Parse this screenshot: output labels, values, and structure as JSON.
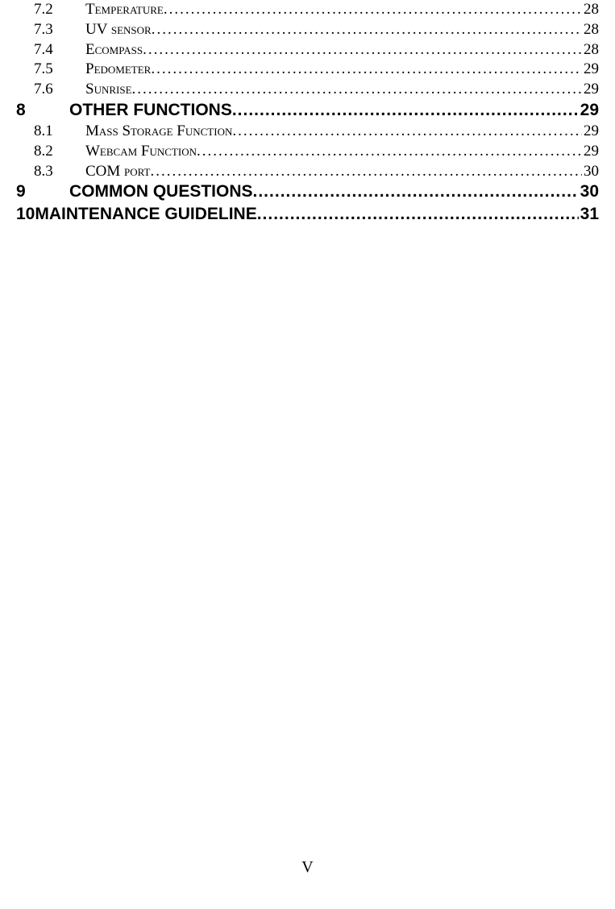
{
  "toc": {
    "entries": [
      {
        "level": "2",
        "num": "7.2",
        "title": "Temperature",
        "page": "28",
        "smallcaps": true
      },
      {
        "level": "2",
        "num": "7.3",
        "title": "UV sensor",
        "page": "28",
        "smallcaps": true
      },
      {
        "level": "2",
        "num": "7.4",
        "title": "Ecompass",
        "page": "28",
        "smallcaps": true
      },
      {
        "level": "2",
        "num": "7.5",
        "title": "Pedometer",
        "page": "29",
        "smallcaps": true
      },
      {
        "level": "2",
        "num": "7.6",
        "title": "Sunrise",
        "page": "29",
        "smallcaps": true
      },
      {
        "level": "1",
        "num": "8",
        "title": "OTHER FUNCTIONS",
        "page": "29",
        "smallcaps": false
      },
      {
        "level": "2",
        "num": "8.1",
        "title": "Mass Storage Function",
        "page": "29",
        "smallcaps": true
      },
      {
        "level": "2",
        "num": "8.2",
        "title": "Webcam Function",
        "page": "29",
        "smallcaps": true
      },
      {
        "level": "2",
        "num": "8.3",
        "title": "COM port",
        "page": "30",
        "smallcaps": true
      },
      {
        "level": "1",
        "num": "9",
        "title": "COMMON QUESTIONS",
        "page": "30",
        "smallcaps": false
      },
      {
        "level": "1-tight",
        "num": "10 ",
        "title": "MAINTENANCE GUIDELINE",
        "page": "31",
        "smallcaps": false
      }
    ]
  },
  "dots_normal": "........................................................................................................................................................",
  "dots_bold": "................................................................................................................",
  "footer": "V",
  "colors": {
    "background": "#ffffff",
    "text": "#000000"
  },
  "fonts": {
    "body": "Times New Roman",
    "heading": "Arial",
    "body_size_pt": 14,
    "heading_size_pt": 16
  }
}
